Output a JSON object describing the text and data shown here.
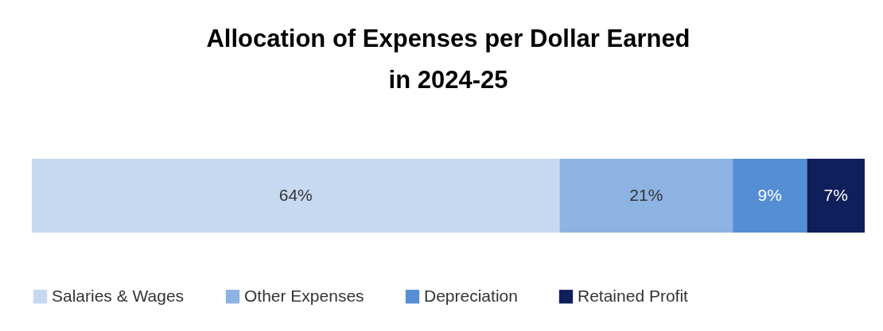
{
  "chart_data": {
    "type": "bar",
    "orientation": "horizontal",
    "stacked": true,
    "title": "Allocation of Expenses per Dollar Earned\nin 2024-25",
    "categories": [
      null
    ],
    "legend": "bottom",
    "series": [
      {
        "name": "Salaries & Wages",
        "color": "#c6d9f1",
        "values": [
          64
        ],
        "value_labels": [
          "64%"
        ]
      },
      {
        "name": "Other Expenses",
        "color": "#8db3e2",
        "values": [
          21
        ],
        "value_labels": [
          "21%"
        ]
      },
      {
        "name": "Depreciation",
        "color": "#558ed5",
        "values": [
          9
        ],
        "value_labels": [
          "9%"
        ]
      },
      {
        "name": "Retained Profit",
        "color": "#0f1f5c",
        "values": [
          7
        ],
        "value_labels": [
          "7%"
        ]
      }
    ]
  }
}
